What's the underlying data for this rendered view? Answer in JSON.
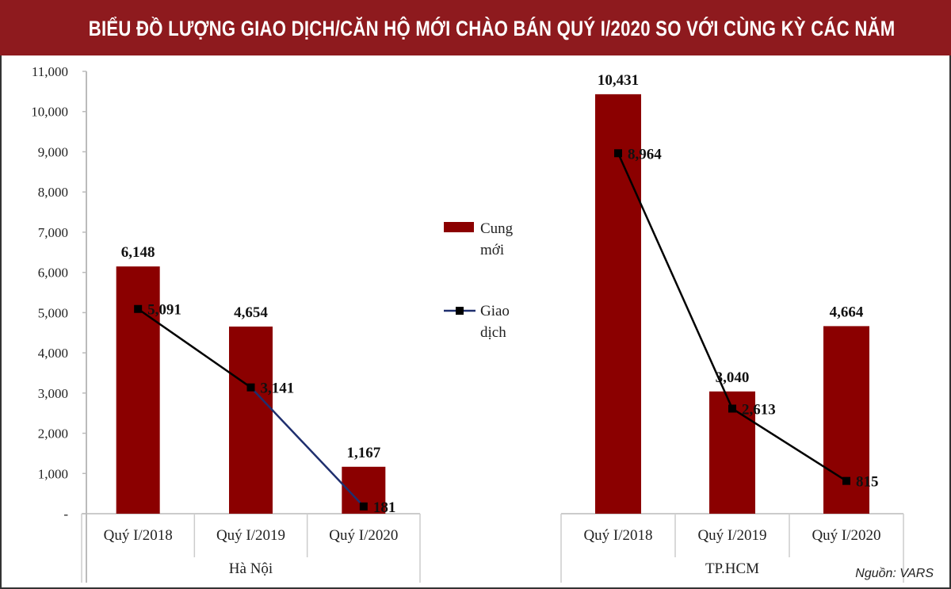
{
  "title": "BIỂU ĐỒ LƯỢNG GIAO DỊCH/CĂN HỘ MỚI CHÀO BÁN QUÝ I/2020 SO VỚI CÙNG KỲ CÁC NĂM",
  "source": "Nguồn: VARS",
  "colors": {
    "header": "#8e1a1e",
    "bar": "#8b0000",
    "line": "#000000",
    "line_segment_hn_2019_2020": "#1f2f6e"
  },
  "chart_data": {
    "type": "bar+line",
    "ylim": [
      0,
      11000
    ],
    "yticks": [
      "-",
      "1,000",
      "2,000",
      "3,000",
      "4,000",
      "5,000",
      "6,000",
      "7,000",
      "8,000",
      "9,000",
      "10,000",
      "11,000"
    ],
    "legend": {
      "placement": "center",
      "items": [
        {
          "label_line1": "Cung",
          "label_line2": "mới"
        },
        {
          "label_line1": "Giao",
          "label_line2": "dịch"
        }
      ]
    },
    "groups": [
      {
        "name": "Hà Nội",
        "categories": [
          "Quý I/2018",
          "Quý I/2019",
          "Quý I/2020"
        ],
        "series": [
          {
            "name": "Cung mới",
            "values": [
              6148,
              4654,
              1167
            ],
            "labels": [
              "6,148",
              "4,654",
              "1,167"
            ]
          },
          {
            "name": "Giao dịch",
            "values": [
              5091,
              3141,
              181
            ],
            "labels": [
              "5,091",
              "3,141",
              "181"
            ]
          }
        ]
      },
      {
        "name": "TP.HCM",
        "categories": [
          "Quý I/2018",
          "Quý I/2019",
          "Quý I/2020"
        ],
        "series": [
          {
            "name": "Cung mới",
            "values": [
              10431,
              3040,
              4664
            ],
            "labels": [
              "10,431",
              "3,040",
              "4,664"
            ]
          },
          {
            "name": "Giao dịch",
            "values": [
              8964,
              2613,
              815
            ],
            "labels": [
              "8,964",
              "2,613",
              "815"
            ]
          }
        ]
      }
    ]
  }
}
